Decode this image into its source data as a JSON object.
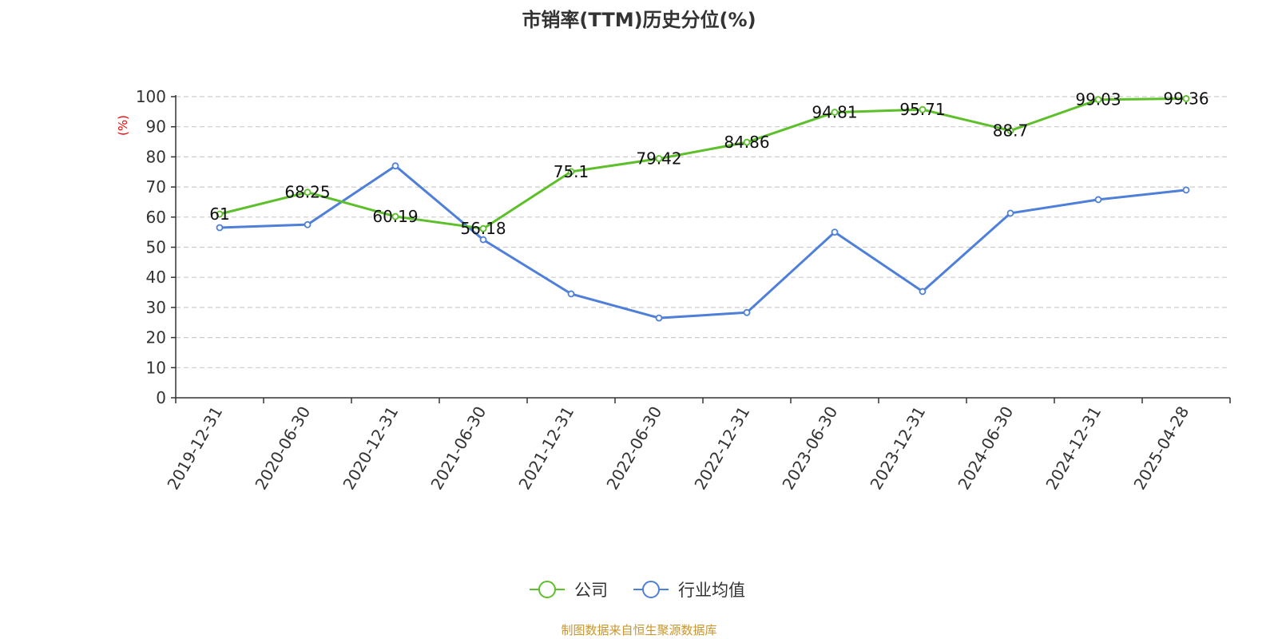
{
  "chart_data": {
    "type": "line",
    "title": "市销率(TTM)历史分位(%)",
    "ylabel": "(%)",
    "ylim": [
      0,
      100
    ],
    "yticks": [
      0,
      10,
      20,
      30,
      40,
      50,
      60,
      70,
      80,
      90,
      100
    ],
    "categories": [
      "2019-12-31",
      "2020-06-30",
      "2020-12-31",
      "2021-06-30",
      "2021-12-31",
      "2022-06-30",
      "2022-12-31",
      "2023-06-30",
      "2023-12-31",
      "2024-06-30",
      "2024-12-31",
      "2025-04-28"
    ],
    "series": [
      {
        "name": "公司",
        "color": "#5dbf2a",
        "show_labels": true,
        "values": [
          61,
          68.25,
          60.19,
          56.18,
          75.1,
          79.42,
          84.86,
          94.81,
          95.71,
          88.7,
          99.03,
          99.36
        ]
      },
      {
        "name": "行业均值",
        "color": "#4e7fd9",
        "show_labels": false,
        "values": [
          56.5,
          57.5,
          77,
          52.5,
          34.5,
          26.5,
          28.3,
          55,
          35.3,
          61.3,
          65.8,
          69
        ]
      }
    ],
    "grid": true,
    "grid_style": "dashed",
    "legend_position": "bottom-center"
  },
  "source": "制图数据来自恒生聚源数据库"
}
